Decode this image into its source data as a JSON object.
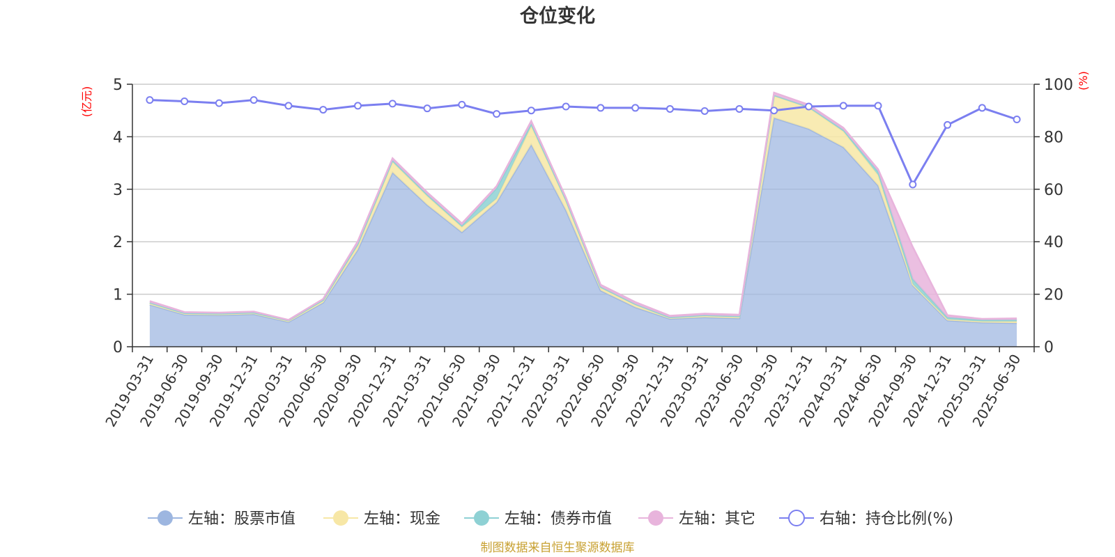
{
  "chart_data": {
    "type": "area",
    "title": "仓位变化",
    "categories": [
      "2019-03-31",
      "2019-06-30",
      "2019-09-30",
      "2019-12-31",
      "2020-03-31",
      "2020-06-30",
      "2020-09-30",
      "2020-12-31",
      "2021-03-31",
      "2021-06-30",
      "2021-09-30",
      "2021-12-31",
      "2022-03-31",
      "2022-06-30",
      "2022-09-30",
      "2022-12-31",
      "2023-03-31",
      "2023-06-30",
      "2023-09-30",
      "2023-12-31",
      "2024-03-31",
      "2024-06-30",
      "2024-09-30",
      "2024-12-31",
      "2025-03-31",
      "2025-06-30"
    ],
    "left_axis": {
      "unit": "(亿元)",
      "ylim": [
        0,
        5
      ],
      "ticks": [
        0,
        1,
        2,
        3,
        4,
        5
      ]
    },
    "right_axis": {
      "unit": "(%)",
      "ylim": [
        0,
        100
      ],
      "ticks": [
        0,
        20,
        40,
        60,
        80,
        100
      ]
    },
    "series": [
      {
        "name": "左轴：股票市值",
        "axis": "left",
        "stack": true,
        "color": "#9db6e0",
        "values": [
          0.8,
          0.61,
          0.6,
          0.62,
          0.47,
          0.84,
          1.85,
          3.32,
          2.7,
          2.18,
          2.75,
          3.85,
          2.6,
          1.07,
          0.75,
          0.53,
          0.56,
          0.54,
          4.36,
          4.15,
          3.8,
          3.07,
          1.17,
          0.5,
          0.46,
          0.45
        ]
      },
      {
        "name": "左轴：现金",
        "axis": "left",
        "stack": true,
        "color": "#f7e7a6",
        "values": [
          0.03,
          0.02,
          0.02,
          0.02,
          0.02,
          0.03,
          0.08,
          0.2,
          0.17,
          0.1,
          0.07,
          0.35,
          0.18,
          0.05,
          0.05,
          0.02,
          0.03,
          0.03,
          0.42,
          0.4,
          0.3,
          0.2,
          0.02,
          0.02,
          0.02,
          0.03
        ]
      },
      {
        "name": "左轴：债券市值",
        "axis": "left",
        "stack": true,
        "color": "#8ed1d4",
        "values": [
          0.01,
          0.01,
          0.01,
          0.01,
          0.01,
          0.02,
          0.03,
          0.03,
          0.03,
          0.03,
          0.2,
          0.05,
          0.02,
          0.02,
          0.01,
          0.01,
          0.01,
          0.01,
          0.01,
          0.02,
          0.03,
          0.07,
          0.1,
          0.04,
          0.03,
          0.03
        ]
      },
      {
        "name": "左轴：其它",
        "axis": "left",
        "stack": true,
        "color": "#e8b4dc",
        "values": [
          0.03,
          0.02,
          0.02,
          0.02,
          0.01,
          0.02,
          0.05,
          0.04,
          0.04,
          0.04,
          0.04,
          0.05,
          0.04,
          0.04,
          0.04,
          0.03,
          0.03,
          0.03,
          0.05,
          0.04,
          0.04,
          0.04,
          0.61,
          0.04,
          0.02,
          0.03
        ]
      },
      {
        "name": "右轴：持仓比例(%)",
        "axis": "right",
        "stack": false,
        "color": "#7b7ff0",
        "values": [
          94.0,
          93.5,
          92.8,
          94.0,
          91.8,
          90.3,
          91.8,
          92.6,
          90.8,
          92.2,
          88.7,
          90.0,
          91.5,
          91.0,
          91.0,
          90.6,
          89.8,
          90.6,
          90.0,
          91.5,
          91.8,
          91.8,
          61.8,
          84.5,
          91.0,
          86.6
        ]
      }
    ],
    "legend_position": "bottom",
    "grid": true
  },
  "source": "制图数据来自恒生聚源数据库"
}
